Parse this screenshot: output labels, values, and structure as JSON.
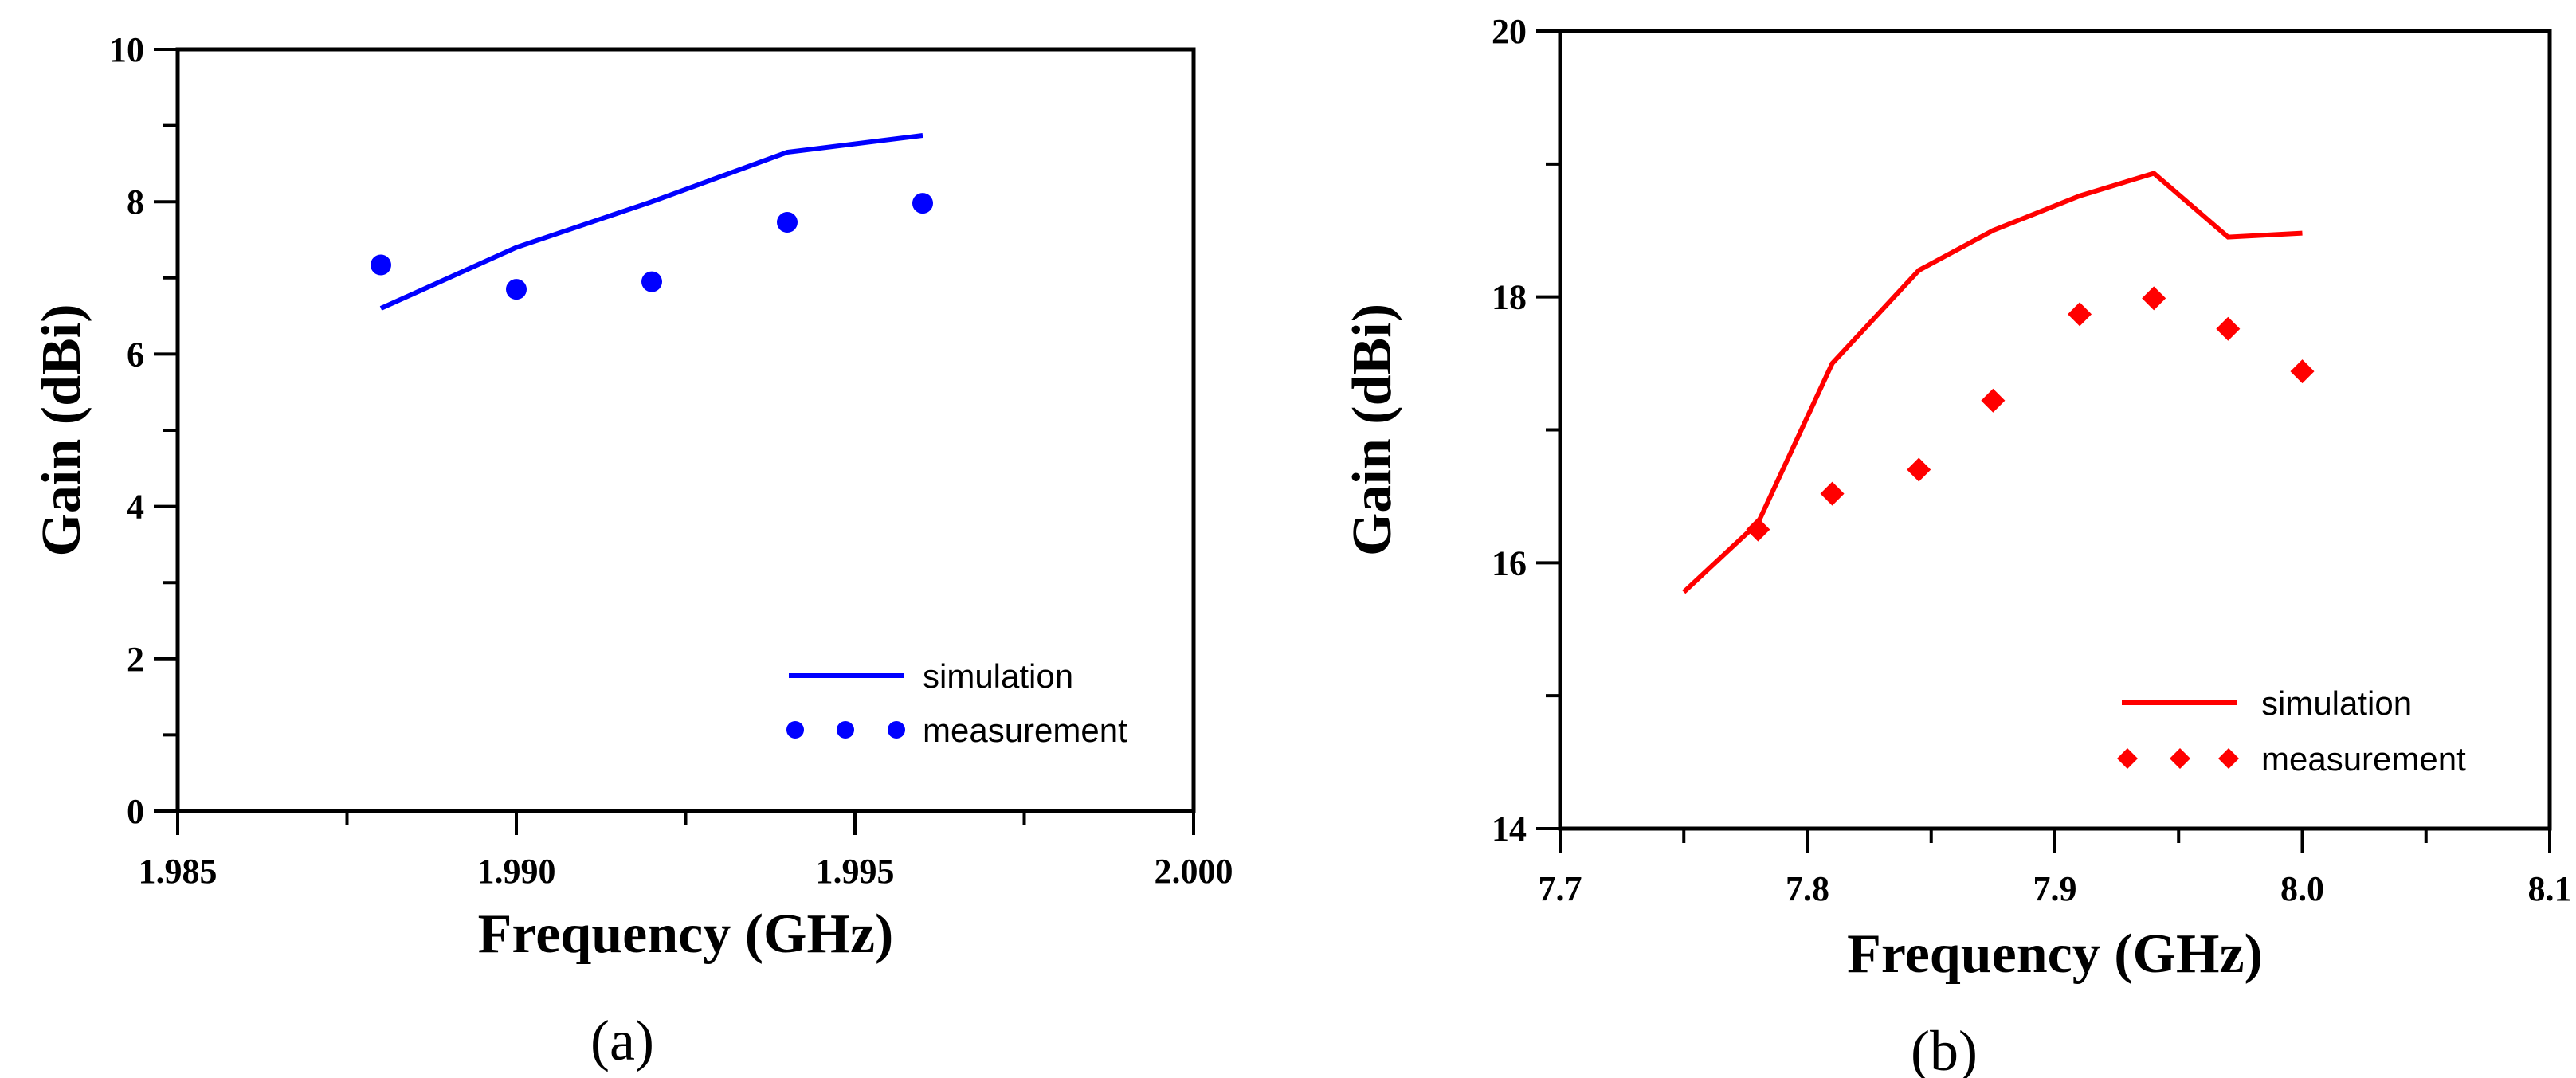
{
  "chart_data": [
    {
      "type": "line",
      "panel_label": "(a)",
      "xlabel": "Frequency (GHz)",
      "ylabel": "Gain (dBi)",
      "xlim": [
        1.985,
        2.0
      ],
      "ylim": [
        0,
        10
      ],
      "x_ticks": [
        1.985,
        1.99,
        1.995,
        2.0
      ],
      "x_tick_labels": [
        "1.985",
        "1.990",
        "1.995",
        "2.000"
      ],
      "x_minor_ticks": [
        1.9875,
        1.9925,
        1.9975
      ],
      "y_ticks": [
        0,
        2,
        4,
        6,
        8,
        10
      ],
      "y_tick_labels": [
        "0",
        "2",
        "4",
        "6",
        "8",
        "10"
      ],
      "y_minor_ticks": [
        1,
        3,
        5,
        7,
        9
      ],
      "color": "#0000ff",
      "legend_position": "bottom-right",
      "series": [
        {
          "name": "simulation",
          "style": "line",
          "x": [
            1.988,
            1.99,
            1.992,
            1.994,
            1.996
          ],
          "y": [
            6.6,
            7.4,
            8.0,
            8.65,
            8.87
          ]
        },
        {
          "name": "measurement",
          "style": "circle",
          "x": [
            1.988,
            1.99,
            1.992,
            1.994,
            1.996
          ],
          "y": [
            7.17,
            6.85,
            6.95,
            7.73,
            7.98
          ]
        }
      ]
    },
    {
      "type": "line",
      "panel_label": "(b)",
      "xlabel": "Frequency (GHz)",
      "ylabel": "Gain (dBi)",
      "xlim": [
        7.7,
        8.1
      ],
      "ylim": [
        14,
        20
      ],
      "x_ticks": [
        7.7,
        7.8,
        7.9,
        8.0,
        8.1
      ],
      "x_tick_labels": [
        "7.7",
        "7.8",
        "7.9",
        "8.0",
        "8.1"
      ],
      "x_minor_ticks": [
        7.75,
        7.85,
        7.95,
        8.05
      ],
      "y_ticks": [
        14,
        16,
        18,
        20
      ],
      "y_tick_labels": [
        "14",
        "16",
        "18",
        "20"
      ],
      "y_minor_ticks": [
        15,
        17,
        19
      ],
      "color": "#ff0000",
      "legend_position": "bottom-right",
      "series": [
        {
          "name": "simulation",
          "style": "line",
          "x": [
            7.75,
            7.78,
            7.81,
            7.845,
            7.875,
            7.91,
            7.94,
            7.97,
            8.0
          ],
          "y": [
            15.78,
            16.3,
            17.5,
            18.2,
            18.5,
            18.76,
            18.93,
            18.45,
            18.48
          ]
        },
        {
          "name": "measurement",
          "style": "diamond",
          "x": [
            7.78,
            7.81,
            7.845,
            7.875,
            7.91,
            7.94,
            7.97,
            8.0
          ],
          "y": [
            16.25,
            16.52,
            16.7,
            17.22,
            17.87,
            17.99,
            17.76,
            17.44
          ]
        }
      ]
    }
  ]
}
